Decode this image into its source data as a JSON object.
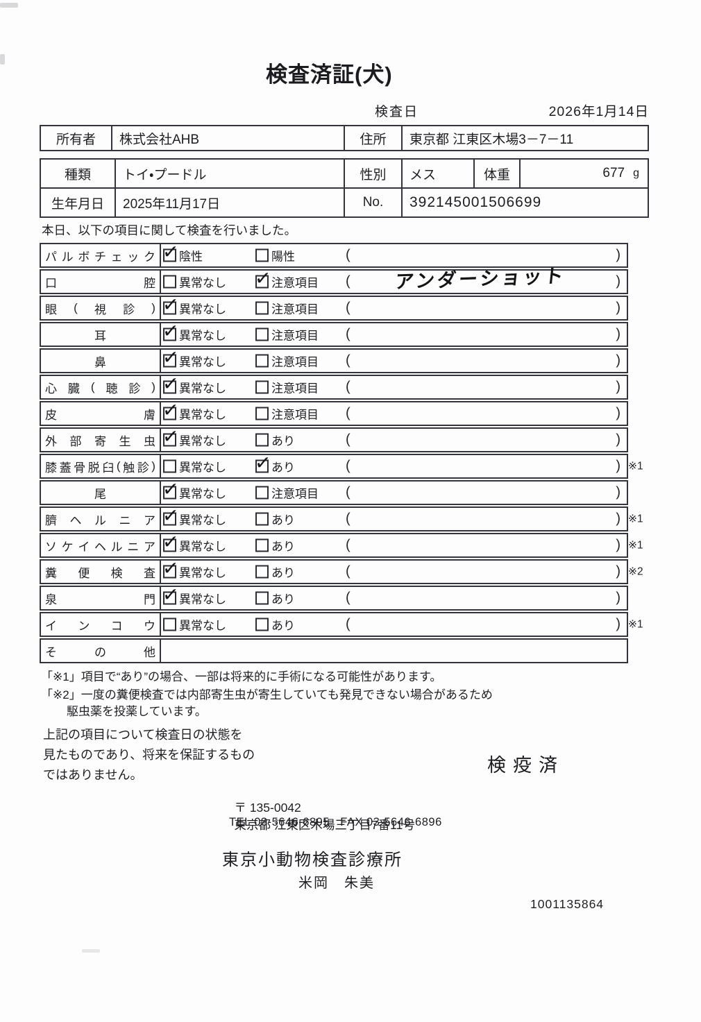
{
  "page": {
    "title": "検査済証(犬)",
    "exam_date_label": "検査日",
    "exam_date": "2026年1月14日",
    "intro": "本日、以下の項目に関して検査を行いました。"
  },
  "owner_table": {
    "owner_label": "所有者",
    "owner_value": "株式会社AHB",
    "address_label": "住所",
    "address_value": "東京都 江東区木場3－7－11"
  },
  "pet_table": {
    "breed_label": "種類",
    "breed_value": "トイ・プードル",
    "sex_label": "性別",
    "sex_value": "メス",
    "weight_label": "体重",
    "weight_value": "677",
    "weight_unit": "g",
    "birth_label": "生年月日",
    "birth_value": "2025年11月17日",
    "no_label": "No.",
    "no_value": "392145001506699"
  },
  "inspection_table": {
    "rows": [
      {
        "label": "パルボチェック",
        "options": [
          {
            "label": "陰性",
            "checked": true
          },
          {
            "label": "陽性",
            "checked": false
          }
        ],
        "has_paren": true,
        "paren": "",
        "note": ""
      },
      {
        "label": "口腔",
        "options": [
          {
            "label": "異常なし",
            "checked": false
          },
          {
            "label": "注意項目",
            "checked": true
          }
        ],
        "has_paren": true,
        "paren": "アンダーショット",
        "note": ""
      },
      {
        "label": "眼(視診)",
        "options": [
          {
            "label": "異常なし",
            "checked": true
          },
          {
            "label": "注意項目",
            "checked": false
          }
        ],
        "has_paren": true,
        "paren": "",
        "note": ""
      },
      {
        "label": "耳",
        "options": [
          {
            "label": "異常なし",
            "checked": true
          },
          {
            "label": "注意項目",
            "checked": false
          }
        ],
        "has_paren": true,
        "paren": "",
        "note": ""
      },
      {
        "label": "鼻",
        "options": [
          {
            "label": "異常なし",
            "checked": true
          },
          {
            "label": "注意項目",
            "checked": false
          }
        ],
        "has_paren": true,
        "paren": "",
        "note": ""
      },
      {
        "label": "心臓(聴診)",
        "options": [
          {
            "label": "異常なし",
            "checked": true
          },
          {
            "label": "注意項目",
            "checked": false
          }
        ],
        "has_paren": true,
        "paren": "",
        "note": ""
      },
      {
        "label": "皮膚",
        "options": [
          {
            "label": "異常なし",
            "checked": true
          },
          {
            "label": "注意項目",
            "checked": false
          }
        ],
        "has_paren": true,
        "paren": "",
        "note": ""
      },
      {
        "label": "外部寄生虫",
        "options": [
          {
            "label": "異常なし",
            "checked": true
          },
          {
            "label": "あり",
            "checked": false
          }
        ],
        "has_paren": true,
        "paren": "",
        "note": ""
      },
      {
        "label": "膝蓋骨脱臼(触診)",
        "options": [
          {
            "label": "異常なし",
            "checked": false
          },
          {
            "label": "あり",
            "checked": true
          }
        ],
        "has_paren": true,
        "paren": "",
        "note": "※1"
      },
      {
        "label": "尾",
        "options": [
          {
            "label": "異常なし",
            "checked": true
          },
          {
            "label": "注意項目",
            "checked": false
          }
        ],
        "has_paren": true,
        "paren": "",
        "note": ""
      },
      {
        "label": "臍ヘルニア",
        "options": [
          {
            "label": "異常なし",
            "checked": true
          },
          {
            "label": "あり",
            "checked": false
          }
        ],
        "has_paren": true,
        "paren": "",
        "note": "※1"
      },
      {
        "label": "ソケイヘルニア",
        "options": [
          {
            "label": "異常なし",
            "checked": true
          },
          {
            "label": "あり",
            "checked": false
          }
        ],
        "has_paren": true,
        "paren": "",
        "note": "※1"
      },
      {
        "label": "糞便検査",
        "options": [
          {
            "label": "異常なし",
            "checked": true
          },
          {
            "label": "あり",
            "checked": false
          }
        ],
        "has_paren": true,
        "paren": "",
        "note": "※2"
      },
      {
        "label": "泉門",
        "options": [
          {
            "label": "異常なし",
            "checked": true
          },
          {
            "label": "あり",
            "checked": false
          }
        ],
        "has_paren": true,
        "paren": "",
        "note": ""
      },
      {
        "label": "インコウ",
        "options": [
          {
            "label": "異常なし",
            "checked": false
          },
          {
            "label": "あり",
            "checked": false
          }
        ],
        "has_paren": true,
        "paren": "",
        "note": "※1"
      },
      {
        "label": "その他",
        "options": [],
        "has_paren": false,
        "paren": "",
        "note": ""
      }
    ]
  },
  "footnotes": {
    "lines": [
      "「※1」項目で“あり”の場合、一部は将来的に手術になる可能性があります。",
      "「※2」一度の糞便検査では内部寄生虫が寄生していても発見できない場合があるため",
      "駆虫薬を投薬しています。"
    ]
  },
  "disclaimer": {
    "lines": [
      "上記の項目について検査日の状態を",
      "見たものであり、将来を保証するもの",
      "ではありません。"
    ]
  },
  "footer": {
    "quarantine_stamp": "検疫済",
    "postal_code": "〒 135-0042",
    "clinic_address": "東京都 江東区木場三丁目7番11号",
    "tel_fax": "TEL 03-5646-6895   FAX 03-5646-6896",
    "clinic_name": "東京小動物検査診療所",
    "examiner_name": "米岡　朱美",
    "serial_number": "1001135864"
  },
  "icons": {
    "checked_box": "checkbox-checked-icon",
    "unchecked_box": "checkbox-unchecked-icon"
  },
  "colors": {
    "ink": "#1e1e22",
    "border": "#33333b",
    "paper": "#fdfdfd"
  }
}
